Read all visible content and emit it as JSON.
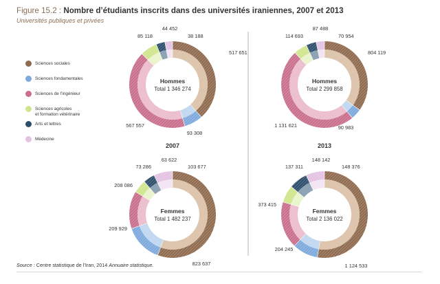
{
  "figure": {
    "number": "Figure 15.2 :",
    "title": "Nombre d’étudiants inscrits dans des universités iraniennes, 2007 et 2013",
    "subtitle": "Universités publiques et privées"
  },
  "legend": [
    {
      "label": "Sciences sociales",
      "color": "#8f6a4e"
    },
    {
      "label": "Sciences fondamentales",
      "color": "#7ea9dc"
    },
    {
      "label": "Sciences de l’ingénieur",
      "color": "#c96f8c"
    },
    {
      "label": "Sciences agricoles\net formation vétérinaire",
      "color": "#cfe58c"
    },
    {
      "label": "Arts et lettres",
      "color": "#2d4e6b"
    },
    {
      "label": "Médecine",
      "color": "#e3c2e2"
    }
  ],
  "source": {
    "prefix": "Source : ",
    "text": "Centre statistique de l’Iran, 2014 ",
    "book": "Annuaire statistique."
  },
  "chart_data": [
    {
      "type": "pie",
      "year": "2007",
      "group": "Hommes",
      "total": "Total 1 346 274",
      "categories": [
        "Sciences sociales",
        "Sciences fondamentales",
        "Sciences de l’ingénieur",
        "Sciences agricoles et formation vétérinaire",
        "Arts et lettres",
        "Médecine"
      ],
      "values": [
        517651,
        93308,
        567557,
        85118,
        44452,
        38188
      ],
      "value_labels": [
        "517 651",
        "93 308",
        "567 557",
        "85 118",
        "44 452",
        "38 188"
      ]
    },
    {
      "type": "pie",
      "year": "2013",
      "group": "Hommes",
      "total": "Total 2 299 858",
      "categories": [
        "Sciences sociales",
        "Sciences fondamentales",
        "Sciences de l’ingénieur",
        "Sciences agricoles et formation vétérinaire",
        "Arts et lettres",
        "Médecine"
      ],
      "values": [
        804119,
        90983,
        1131621,
        114693,
        87488,
        70954
      ],
      "value_labels": [
        "804 119",
        "90 983",
        "1 131 621",
        "114 693",
        "87 488",
        "70 954"
      ]
    },
    {
      "type": "pie",
      "year": "2007",
      "group": "Femmes",
      "total": "Total 1 482 237",
      "categories": [
        "Sciences sociales",
        "Sciences fondamentales",
        "Sciences de l’ingénieur",
        "Sciences agricoles et formation vétérinaire",
        "Arts et lettres",
        "Médecine"
      ],
      "values": [
        823637,
        209929,
        208086,
        73286,
        63622,
        103677
      ],
      "value_labels": [
        "823 637",
        "209 929",
        "208 086",
        "73 286",
        "63 622",
        "103 677"
      ]
    },
    {
      "type": "pie",
      "year": "2013",
      "group": "Femmes",
      "total": "Total 2 136 022",
      "categories": [
        "Sciences sociales",
        "Sciences fondamentales",
        "Sciences de l’ingénieur",
        "Sciences agricoles et formation vétérinaire",
        "Arts et lettres",
        "Médecine"
      ],
      "values": [
        1124533,
        204245,
        373415,
        137311,
        148142,
        148376
      ],
      "value_labels": [
        "1 124 533",
        "204 245",
        "373 415",
        "137 311",
        "148 142",
        "148 376"
      ]
    }
  ]
}
